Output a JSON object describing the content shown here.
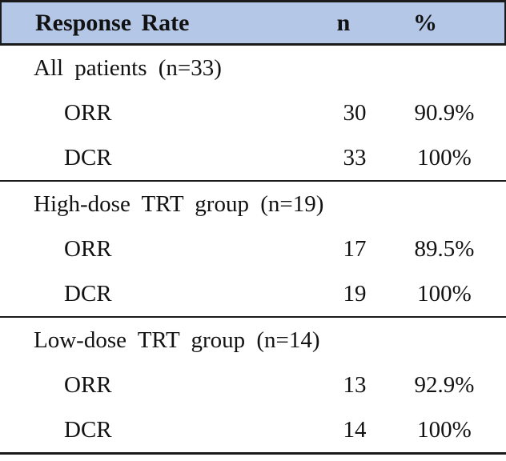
{
  "table": {
    "header": {
      "label": "Response Rate",
      "col_n": "n",
      "col_pct": "%"
    },
    "colors": {
      "header_bg": "#b4c7e7",
      "border": "#1a1a1a",
      "text": "#121212"
    },
    "sections": [
      {
        "title": "All patients (n=33)",
        "rows": [
          {
            "label": "ORR",
            "n": "30",
            "pct": "90.9%"
          },
          {
            "label": "DCR",
            "n": "33",
            "pct": "100%"
          }
        ]
      },
      {
        "title": "High-dose TRT group (n=19)",
        "rows": [
          {
            "label": "ORR",
            "n": "17",
            "pct": "89.5%"
          },
          {
            "label": "DCR",
            "n": "19",
            "pct": "100%"
          }
        ]
      },
      {
        "title": "Low-dose TRT group (n=14)",
        "rows": [
          {
            "label": "ORR",
            "n": "13",
            "pct": "92.9%"
          },
          {
            "label": "DCR",
            "n": "14",
            "pct": "100%"
          }
        ]
      }
    ]
  },
  "chart_data": {
    "type": "table",
    "columns": [
      "Response Rate",
      "n",
      "%"
    ],
    "rows": [
      [
        "All patients (n=33)",
        "",
        ""
      ],
      [
        "ORR",
        "30",
        "90.9%"
      ],
      [
        "DCR",
        "33",
        "100%"
      ],
      [
        "High-dose TRT group (n=19)",
        "",
        ""
      ],
      [
        "ORR",
        "17",
        "89.5%"
      ],
      [
        "DCR",
        "19",
        "100%"
      ],
      [
        "Low-dose TRT group (n=14)",
        "",
        ""
      ],
      [
        "ORR",
        "13",
        "92.9%"
      ],
      [
        "DCR",
        "14",
        "100%"
      ]
    ]
  }
}
